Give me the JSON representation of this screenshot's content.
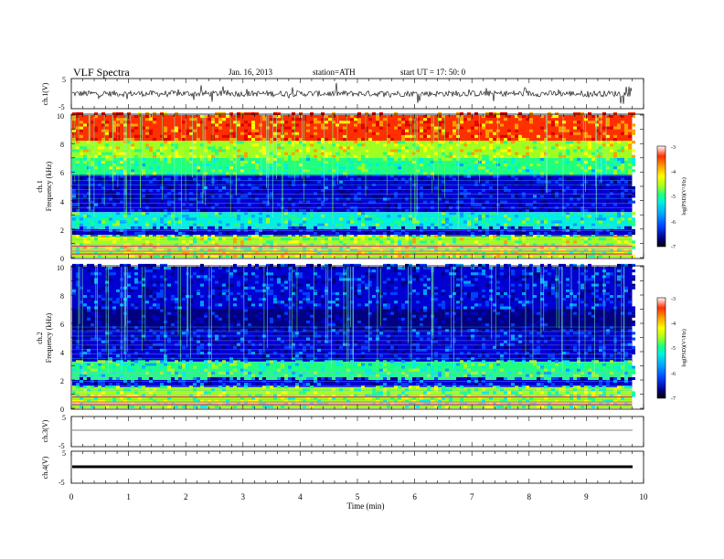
{
  "header": {
    "title": "VLF  Spectra",
    "date": "Jan. 16, 2013",
    "station": "station=ATH",
    "start": "start  UT  =    17: 50: 0"
  },
  "chart_data": [
    {
      "type": "line",
      "panel": "ch1-waveform",
      "ylabel": "ch.1(V)",
      "ylim": [
        -5,
        5
      ],
      "y_ticks": [
        "5",
        "-5"
      ],
      "description_level": 0.0,
      "noise_amplitude": 1.0
    },
    {
      "type": "heatmap",
      "panel": "ch1-spectrogram",
      "ylabel_channel": "ch.1",
      "ylabel": "Frequency  (kHz)",
      "ylim": [
        0,
        10
      ],
      "y_ticks": [
        "0",
        "2",
        "4",
        "6",
        "8",
        "10"
      ],
      "colorbar": {
        "label": "log(PSD)(V²/Hz)",
        "range": [
          -7,
          -3
        ],
        "ticks": [
          "-3",
          "-4",
          "-5",
          "-6",
          "-7"
        ]
      },
      "profile": [
        {
          "f": [
            0,
            1.5
          ],
          "level": -4.6
        },
        {
          "f": [
            1.5,
            2.0
          ],
          "level": -6.4
        },
        {
          "f": [
            2.0,
            3.2
          ],
          "level": -5.2
        },
        {
          "f": [
            3.2,
            5.8
          ],
          "level": -6.5
        },
        {
          "f": [
            5.8,
            7.0
          ],
          "level": -5.0
        },
        {
          "f": [
            7.0,
            8.2
          ],
          "level": -4.5
        },
        {
          "f": [
            8.2,
            10.0
          ],
          "level": -3.6
        }
      ]
    },
    {
      "type": "heatmap",
      "panel": "ch2-spectrogram",
      "ylabel_channel": "ch.2",
      "ylabel": "Frequency  (kHz)",
      "ylim": [
        0,
        10
      ],
      "y_ticks": [
        "0",
        "2",
        "4",
        "6",
        "8",
        "10"
      ],
      "colorbar": {
        "label": "log(PSD)(V²/Hz)",
        "range": [
          -7,
          -3
        ],
        "ticks": [
          "-3",
          "-4",
          "-5",
          "-6",
          "-7"
        ]
      },
      "profile": [
        {
          "f": [
            0,
            1.5
          ],
          "level": -4.8
        },
        {
          "f": [
            1.5,
            2.0
          ],
          "level": -6.3
        },
        {
          "f": [
            2.0,
            3.3
          ],
          "level": -5.1
        },
        {
          "f": [
            3.3,
            5.5
          ],
          "level": -6.4
        },
        {
          "f": [
            5.5,
            7.0
          ],
          "level": -6.7
        },
        {
          "f": [
            7.0,
            10.0
          ],
          "level": -6.3
        }
      ]
    },
    {
      "type": "line",
      "panel": "ch3-waveform",
      "ylabel": "ch.3(V)",
      "ylim": [
        -5,
        5
      ],
      "y_ticks": [
        "5",
        "-5"
      ],
      "description_level": 0.0,
      "noise_amplitude": 0.05
    },
    {
      "type": "line",
      "panel": "ch4-waveform",
      "ylabel": "ch.4(V)",
      "ylim": [
        -5,
        5
      ],
      "y_ticks": [
        "5",
        "-5"
      ],
      "description_level": 0.0,
      "noise_amplitude": 0.25
    }
  ],
  "x_axis": {
    "label": "Time  (min)",
    "range": [
      0,
      10
    ],
    "data_end": 9.8,
    "ticks": [
      "0",
      "1",
      "2",
      "3",
      "4",
      "5",
      "6",
      "7",
      "8",
      "9",
      "10"
    ]
  },
  "colors": {
    "colormap": [
      "#000080",
      "#0000d0",
      "#0040ff",
      "#00a0ff",
      "#00f0e0",
      "#20ff80",
      "#a0ff20",
      "#ffff00",
      "#ffa000",
      "#ff3000",
      "#e00000"
    ]
  }
}
